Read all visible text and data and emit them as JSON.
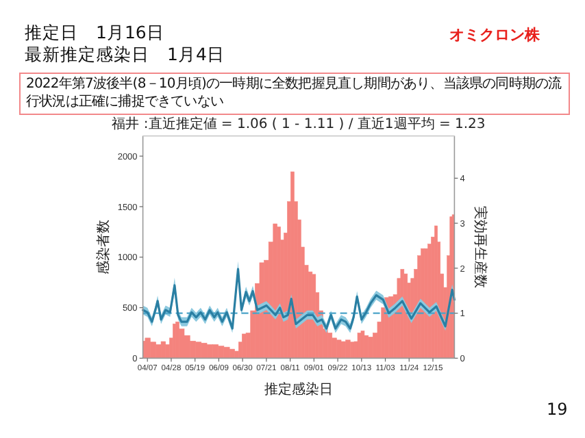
{
  "chart_data": {
    "type": "bar",
    "title": "福井 :直近推定値 = 1.06 ( 1 - 1.11 ) / 直近1週平均 = 1.23",
    "xlabel": "推定感染日",
    "ylabel": "感染者数",
    "y2label": "実効再生産数",
    "annotations": [
      "推定日　1月16日",
      "最新推定感染日　1月4日",
      "オミクロン株",
      "2022年第7波後半(8－10月頃)の一時期に全数把握見直し期間があり、当該県の同時期の流行状況は正確に捕捉できていない",
      "19"
    ],
    "xlim": [
      "2022-04-03",
      "2023-01-03"
    ],
    "xticks": [
      {
        "value": "2022-04-07",
        "label": "04/07"
      },
      {
        "value": "2022-04-28",
        "label": "04/28"
      },
      {
        "value": "2022-05-19",
        "label": "05/19"
      },
      {
        "value": "2022-06-09",
        "label": "06/09"
      },
      {
        "value": "2022-06-30",
        "label": "06/30"
      },
      {
        "value": "2022-07-21",
        "label": "07/21"
      },
      {
        "value": "2022-08-11",
        "label": "08/11"
      },
      {
        "value": "2022-09-01",
        "label": "09/01"
      },
      {
        "value": "2022-09-22",
        "label": "09/22"
      },
      {
        "value": "2022-10-13",
        "label": "10/13"
      },
      {
        "value": "2022-11-03",
        "label": "11/03"
      },
      {
        "value": "2022-11-24",
        "label": "11/24"
      },
      {
        "value": "2022-12-15",
        "label": "12/15"
      }
    ],
    "ylim": [
      0,
      2200
    ],
    "yticks": [
      0,
      500,
      1000,
      1500,
      2000
    ],
    "y2lim": [
      0,
      4.94
    ],
    "y2ticks": [
      0,
      1,
      2,
      3,
      4
    ],
    "series": [
      {
        "color": "#f4837d",
        "x": [
          "2022-04-03",
          "2022-04-07",
          "2022-04-12",
          "2022-04-17",
          "2022-04-21",
          "2022-04-25",
          "2022-04-28",
          "2022-05-01",
          "2022-05-03",
          "2022-05-07",
          "2022-05-12",
          "2022-05-17",
          "2022-05-22",
          "2022-05-27",
          "2022-06-01",
          "2022-06-06",
          "2022-06-11",
          "2022-06-16",
          "2022-06-21",
          "2022-06-25",
          "2022-06-28",
          "2022-07-01",
          "2022-07-05",
          "2022-07-09",
          "2022-07-13",
          "2022-07-17",
          "2022-07-21",
          "2022-07-25",
          "2022-07-29",
          "2022-08-01",
          "2022-08-04",
          "2022-08-07",
          "2022-08-10",
          "2022-08-13",
          "2022-08-16",
          "2022-08-19",
          "2022-08-22",
          "2022-08-25",
          "2022-08-29",
          "2022-09-01",
          "2022-09-04",
          "2022-09-07",
          "2022-09-11",
          "2022-09-15",
          "2022-09-19",
          "2022-09-23",
          "2022-09-27",
          "2022-10-01",
          "2022-10-05",
          "2022-10-08",
          "2022-10-11",
          "2022-10-14",
          "2022-10-17",
          "2022-10-21",
          "2022-10-25",
          "2022-10-29",
          "2022-11-01",
          "2022-11-04",
          "2022-11-08",
          "2022-11-12",
          "2022-11-15",
          "2022-11-18",
          "2022-11-21",
          "2022-11-24",
          "2022-11-27",
          "2022-11-30",
          "2022-12-03",
          "2022-12-06",
          "2022-12-09",
          "2022-12-12",
          "2022-12-15",
          "2022-12-18",
          "2022-12-20",
          "2022-12-23",
          "2022-12-26",
          "2022-12-29",
          "2022-12-31",
          "2023-01-02"
        ],
        "values": [
          170,
          200,
          160,
          135,
          165,
          135,
          200,
          340,
          360,
          290,
          225,
          170,
          160,
          150,
          135,
          135,
          120,
          110,
          90,
          70,
          160,
          240,
          250,
          470,
          740,
          945,
          970,
          1150,
          1330,
          1300,
          1170,
          1240,
          1550,
          1845,
          1550,
          1370,
          1100,
          920,
          855,
          830,
          650,
          470,
          290,
          250,
          200,
          180,
          165,
          180,
          160,
          165,
          250,
          270,
          225,
          210,
          250,
          360,
          500,
          600,
          610,
          630,
          790,
          880,
          835,
          745,
          790,
          880,
          1015,
          1085,
          1085,
          1130,
          1200,
          1310,
          1150,
          835,
          700,
          1015,
          1400,
          1420
        ]
      },
      {
        "type": "line",
        "axis": "y2",
        "color": "#2a7fa3",
        "x": [
          "2022-04-03",
          "2022-04-07",
          "2022-04-11",
          "2022-04-14",
          "2022-04-16",
          "2022-04-19",
          "2022-04-23",
          "2022-04-27",
          "2022-05-01",
          "2022-05-04",
          "2022-05-07",
          "2022-05-12",
          "2022-05-16",
          "2022-05-20",
          "2022-05-24",
          "2022-05-28",
          "2022-06-01",
          "2022-06-05",
          "2022-06-08",
          "2022-06-12",
          "2022-06-16",
          "2022-06-21",
          "2022-06-26",
          "2022-06-29",
          "2022-07-03",
          "2022-07-06",
          "2022-07-09",
          "2022-07-13",
          "2022-07-17",
          "2022-07-21",
          "2022-07-25",
          "2022-07-29",
          "2022-08-02",
          "2022-08-05",
          "2022-08-09",
          "2022-08-12",
          "2022-08-16",
          "2022-08-21",
          "2022-08-26",
          "2022-08-31",
          "2022-09-04",
          "2022-09-08",
          "2022-09-12",
          "2022-09-16",
          "2022-09-20",
          "2022-09-25",
          "2022-09-29",
          "2022-10-03",
          "2022-10-06",
          "2022-10-09",
          "2022-10-13",
          "2022-10-17",
          "2022-10-21",
          "2022-10-26",
          "2022-11-01",
          "2022-11-06",
          "2022-11-11",
          "2022-11-18",
          "2022-11-26",
          "2022-12-04",
          "2022-12-12",
          "2022-12-18",
          "2022-12-26",
          "2023-01-01",
          "2023-01-03"
        ],
        "values": [
          1.07,
          1.02,
          0.81,
          1.07,
          1.27,
          0.86,
          1.07,
          1.02,
          1.62,
          0.96,
          0.81,
          0.81,
          1.02,
          0.91,
          1.02,
          0.86,
          1.07,
          0.91,
          1.02,
          0.81,
          1.02,
          0.66,
          1.98,
          1.07,
          1.47,
          1.27,
          1.49,
          1.07,
          1.12,
          1.17,
          1.07,
          0.96,
          1.12,
          0.91,
          0.96,
          1.32,
          0.76,
          0.86,
          0.96,
          0.96,
          0.81,
          0.86,
          0.66,
          0.96,
          0.66,
          0.86,
          0.81,
          0.66,
          0.91,
          1.37,
          0.86,
          1.02,
          1.22,
          1.4,
          1.3,
          1.0,
          1.1,
          1.27,
          0.88,
          1.22,
          1.02,
          1.15,
          0.71,
          1.52,
          1.3
        ],
        "lower": [
          0.97,
          0.92,
          0.71,
          0.97,
          1.15,
          0.76,
          0.97,
          0.92,
          1.45,
          0.86,
          0.71,
          0.71,
          0.92,
          0.81,
          0.92,
          0.76,
          0.97,
          0.81,
          0.92,
          0.71,
          0.92,
          0.56,
          1.8,
          0.97,
          1.35,
          1.17,
          1.37,
          0.97,
          1.02,
          1.07,
          0.97,
          0.86,
          1.02,
          0.81,
          0.86,
          1.22,
          0.66,
          0.76,
          0.86,
          0.86,
          0.71,
          0.76,
          0.56,
          0.86,
          0.56,
          0.76,
          0.71,
          0.56,
          0.81,
          1.25,
          0.76,
          0.92,
          1.12,
          1.3,
          1.2,
          0.9,
          1.0,
          1.17,
          0.78,
          1.12,
          0.92,
          1.05,
          0.61,
          1.4,
          1.2
        ],
        "upper": [
          1.17,
          1.12,
          0.91,
          1.17,
          1.39,
          0.96,
          1.17,
          1.12,
          1.79,
          1.06,
          0.91,
          0.91,
          1.12,
          1.01,
          1.12,
          0.96,
          1.17,
          1.01,
          1.12,
          0.91,
          1.12,
          0.76,
          2.16,
          1.17,
          1.59,
          1.37,
          1.61,
          1.17,
          1.22,
          1.27,
          1.17,
          1.06,
          1.22,
          1.01,
          1.06,
          1.42,
          0.86,
          0.96,
          1.06,
          1.06,
          0.91,
          0.96,
          0.76,
          1.06,
          0.76,
          0.96,
          0.91,
          0.76,
          1.01,
          1.49,
          0.96,
          1.12,
          1.32,
          1.5,
          1.4,
          1.1,
          1.2,
          1.37,
          0.98,
          1.32,
          1.12,
          1.25,
          0.81,
          1.64,
          1.4
        ]
      }
    ],
    "ref_lines": [
      {
        "axis": "y2",
        "value": 1,
        "color": "#4aa3c8",
        "line_style": "dashed"
      }
    ]
  }
}
